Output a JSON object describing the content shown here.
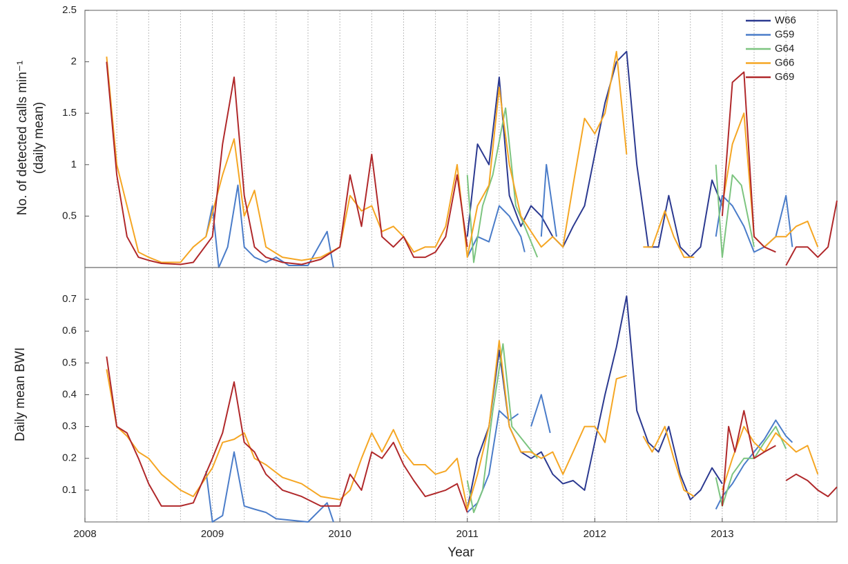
{
  "chart_data": [
    {
      "type": "line",
      "ylabel": [
        "No. of detected calls min⁻¹",
        "(daily mean)"
      ],
      "xlim": [
        2008,
        2013.9
      ],
      "ylim": [
        0,
        2.5
      ],
      "yticks": [
        0.5,
        1,
        1.5,
        2,
        2.5
      ],
      "legend": "upper right",
      "grid_x": [
        2008.25,
        2008.5,
        2008.75,
        2009,
        2009.25,
        2009.5,
        2009.75,
        2010,
        2010.25,
        2010.5,
        2010.75,
        2011,
        2011.25,
        2011.5,
        2011.75,
        2012,
        2012.25,
        2012.5,
        2012.75,
        2013,
        2013.25,
        2013.5,
        2013.75
      ],
      "series": [
        {
          "name": "W66",
          "color": "#2b3990",
          "x": [
            2011.0,
            2011.08,
            2011.17,
            2011.25,
            2011.33,
            2011.42,
            2011.5,
            2011.58,
            2011.67,
            2011.75,
            2011.83,
            2011.92,
            2012.0,
            2012.08,
            2012.17,
            2012.25,
            2012.33,
            2012.42,
            2012.5,
            2012.58,
            2012.67,
            2012.75,
            2012.83,
            2012.92,
            2013.0
          ],
          "values": [
            0.3,
            1.2,
            1.0,
            1.85,
            0.7,
            0.4,
            0.6,
            0.5,
            0.3,
            0.2,
            0.4,
            0.6,
            1.1,
            1.6,
            2.0,
            2.1,
            1.0,
            0.2,
            0.2,
            0.7,
            0.2,
            0.1,
            0.2,
            0.85,
            0.6
          ]
        },
        {
          "name": "G59",
          "color": "#4a7cc9",
          "x": [
            2008.95,
            2009.0,
            2009.05,
            2009.12,
            2009.2,
            2009.25,
            2009.33,
            2009.42,
            2009.5,
            2009.6,
            2009.75,
            2009.9,
            2009.95,
            null,
            2011.0,
            2011.08,
            2011.17,
            2011.25,
            2011.33,
            2011.42,
            2011.45,
            null,
            2011.58,
            2011.62,
            2011.7,
            null,
            2012.95,
            2013.0,
            2013.08,
            2013.17,
            2013.25,
            2013.33,
            2013.42,
            2013.5,
            2013.55
          ],
          "values": [
            0.3,
            0.6,
            0.0,
            0.2,
            0.8,
            0.2,
            0.1,
            0.05,
            0.1,
            0.02,
            0.02,
            0.35,
            0.0,
            null,
            0.1,
            0.3,
            0.25,
            0.6,
            0.5,
            0.3,
            0.15,
            null,
            0.3,
            1.0,
            0.3,
            null,
            0.3,
            0.7,
            0.6,
            0.4,
            0.15,
            0.2,
            0.3,
            0.7,
            0.2
          ]
        },
        {
          "name": "G64",
          "color": "#7cc47f",
          "x": [
            2011.0,
            2011.05,
            2011.12,
            2011.2,
            2011.3,
            2011.38,
            2011.45,
            2011.55,
            null,
            2012.95,
            2013.0,
            2013.08,
            2013.15,
            2013.25
          ],
          "values": [
            0.9,
            0.05,
            0.6,
            0.9,
            1.55,
            0.6,
            0.4,
            0.1,
            null,
            1.0,
            0.1,
            0.9,
            0.8,
            0.2
          ]
        },
        {
          "name": "G66",
          "color": "#f5a623",
          "x": [
            2008.17,
            2008.25,
            2008.33,
            2008.42,
            2008.5,
            2008.6,
            2008.75,
            2008.85,
            2008.95,
            2009.08,
            2009.17,
            2009.25,
            2009.33,
            2009.42,
            2009.55,
            2009.7,
            2009.85,
            2010.0,
            2010.08,
            2010.17,
            2010.25,
            2010.33,
            2010.42,
            2010.5,
            2010.58,
            2010.67,
            2010.75,
            2010.83,
            2010.92,
            2011.0,
            2011.08,
            2011.17,
            2011.25,
            2011.33,
            2011.42,
            2011.5,
            2011.58,
            2011.67,
            2011.75,
            2011.83,
            2011.92,
            2012.0,
            2012.08,
            2012.17,
            2012.25,
            null,
            2012.38,
            2012.45,
            2012.55,
            2012.62,
            2012.7,
            2012.78,
            null,
            2013.0,
            2013.08,
            2013.17,
            2013.25,
            2013.33,
            2013.42,
            2013.5,
            2013.58,
            2013.67,
            2013.75
          ],
          "values": [
            2.05,
            1.0,
            0.6,
            0.15,
            0.1,
            0.05,
            0.05,
            0.2,
            0.3,
            0.9,
            1.25,
            0.5,
            0.75,
            0.2,
            0.1,
            0.07,
            0.1,
            0.2,
            0.7,
            0.55,
            0.6,
            0.35,
            0.4,
            0.3,
            0.15,
            0.2,
            0.2,
            0.4,
            1.0,
            0.1,
            0.6,
            0.8,
            1.75,
            1.0,
            0.5,
            0.35,
            0.2,
            0.3,
            0.2,
            0.8,
            1.45,
            1.3,
            1.5,
            2.1,
            1.1,
            null,
            0.2,
            0.2,
            0.55,
            0.3,
            0.1,
            0.1,
            null,
            0.6,
            1.2,
            1.5,
            0.3,
            0.2,
            0.3,
            0.3,
            0.4,
            0.45,
            0.2
          ]
        },
        {
          "name": "G69",
          "color": "#b0282a",
          "x": [
            2008.17,
            2008.25,
            2008.33,
            2008.42,
            2008.5,
            2008.6,
            2008.75,
            2008.85,
            2009.0,
            2009.08,
            2009.17,
            2009.25,
            2009.33,
            2009.42,
            2009.55,
            2009.7,
            2009.85,
            2010.0,
            2010.08,
            2010.17,
            2010.25,
            2010.33,
            2010.42,
            2010.5,
            2010.58,
            2010.67,
            2010.75,
            2010.83,
            2010.92,
            2011.0,
            null,
            2013.0,
            2013.08,
            2013.17,
            2013.25,
            2013.33,
            2013.42,
            null,
            2013.5,
            2013.58,
            2013.67,
            2013.75,
            2013.83,
            2013.9
          ],
          "values": [
            2.0,
            0.9,
            0.3,
            0.1,
            0.07,
            0.04,
            0.03,
            0.05,
            0.3,
            1.2,
            1.85,
            0.7,
            0.2,
            0.1,
            0.05,
            0.03,
            0.08,
            0.2,
            0.9,
            0.4,
            1.1,
            0.3,
            0.2,
            0.3,
            0.1,
            0.1,
            0.15,
            0.3,
            0.9,
            0.2,
            null,
            0.5,
            1.8,
            1.9,
            0.3,
            0.2,
            0.15,
            null,
            0.02,
            0.2,
            0.2,
            0.1,
            0.2,
            0.65
          ]
        }
      ]
    },
    {
      "type": "line",
      "ylabel": "Daily mean BWI",
      "xlabel": "Year",
      "xlim": [
        2008,
        2013.9
      ],
      "ylim": [
        0,
        0.8
      ],
      "yticks": [
        0.1,
        0.2,
        0.3,
        0.4,
        0.5,
        0.6,
        0.7
      ],
      "xticks": [
        2008,
        2009,
        2010,
        2011,
        2012,
        2013
      ],
      "grid_x": [
        2008.25,
        2008.5,
        2008.75,
        2009,
        2009.25,
        2009.5,
        2009.75,
        2010,
        2010.25,
        2010.5,
        2010.75,
        2011,
        2011.25,
        2011.5,
        2011.75,
        2012,
        2012.25,
        2012.5,
        2012.75,
        2013,
        2013.25,
        2013.5,
        2013.75
      ],
      "series": [
        {
          "name": "W66",
          "color": "#2b3990",
          "x": [
            2011.0,
            2011.08,
            2011.17,
            2011.25,
            2011.33,
            2011.42,
            2011.5,
            2011.58,
            2011.67,
            2011.75,
            2011.83,
            2011.92,
            2012.0,
            2012.08,
            2012.17,
            2012.25,
            2012.33,
            2012.42,
            2012.5,
            2012.58,
            2012.67,
            2012.75,
            2012.83,
            2012.92,
            2013.0
          ],
          "values": [
            0.04,
            0.2,
            0.3,
            0.54,
            0.3,
            0.22,
            0.2,
            0.22,
            0.15,
            0.12,
            0.13,
            0.1,
            0.25,
            0.4,
            0.55,
            0.71,
            0.35,
            0.25,
            0.22,
            0.3,
            0.15,
            0.07,
            0.1,
            0.17,
            0.12
          ]
        },
        {
          "name": "G59",
          "color": "#4a7cc9",
          "x": [
            2008.95,
            2009.0,
            2009.08,
            2009.17,
            2009.25,
            2009.33,
            2009.42,
            2009.5,
            2009.75,
            2009.9,
            2009.95,
            null,
            2011.0,
            2011.08,
            2011.17,
            2011.25,
            2011.33,
            2011.4,
            null,
            2011.5,
            2011.58,
            2011.65,
            null,
            2012.95,
            2013.0,
            2013.08,
            2013.17,
            2013.25,
            2013.33,
            2013.42,
            2013.5,
            2013.55
          ],
          "values": [
            0.16,
            0.0,
            0.02,
            0.22,
            0.05,
            0.04,
            0.03,
            0.01,
            0.0,
            0.06,
            0.0,
            null,
            0.03,
            0.06,
            0.15,
            0.35,
            0.32,
            0.34,
            null,
            0.3,
            0.4,
            0.28,
            null,
            0.04,
            0.08,
            0.12,
            0.18,
            0.22,
            0.26,
            0.32,
            0.27,
            0.25
          ]
        },
        {
          "name": "G64",
          "color": "#7cc47f",
          "x": [
            2011.0,
            2011.05,
            2011.12,
            2011.2,
            2011.28,
            2011.35,
            2011.45,
            2011.55,
            null,
            2012.95,
            2013.0,
            2013.08,
            2013.17,
            2013.25,
            2013.33,
            2013.42,
            2013.5
          ],
          "values": [
            0.13,
            0.03,
            0.1,
            0.35,
            0.56,
            0.3,
            0.25,
            0.2,
            null,
            0.14,
            0.05,
            0.15,
            0.2,
            0.2,
            0.25,
            0.3,
            0.23
          ]
        },
        {
          "name": "G66",
          "color": "#f5a623",
          "x": [
            2008.17,
            2008.25,
            2008.33,
            2008.42,
            2008.5,
            2008.6,
            2008.75,
            2008.85,
            2009.0,
            2009.08,
            2009.17,
            2009.25,
            2009.33,
            2009.42,
            2009.55,
            2009.7,
            2009.85,
            2010.0,
            2010.08,
            2010.17,
            2010.25,
            2010.33,
            2010.42,
            2010.5,
            2010.58,
            2010.67,
            2010.75,
            2010.83,
            2010.92,
            2011.0,
            2011.08,
            2011.17,
            2011.25,
            2011.33,
            2011.42,
            2011.5,
            2011.58,
            2011.67,
            2011.75,
            2011.83,
            2011.92,
            2012.0,
            2012.08,
            2012.17,
            2012.25,
            null,
            2012.38,
            2012.45,
            2012.55,
            2012.62,
            2012.7,
            2012.78,
            null,
            2013.0,
            2013.08,
            2013.17,
            2013.25,
            2013.33,
            2013.42,
            2013.5,
            2013.58,
            2013.67,
            2013.75
          ],
          "values": [
            0.48,
            0.3,
            0.27,
            0.22,
            0.2,
            0.15,
            0.1,
            0.08,
            0.17,
            0.25,
            0.26,
            0.28,
            0.2,
            0.18,
            0.14,
            0.12,
            0.08,
            0.07,
            0.1,
            0.2,
            0.28,
            0.22,
            0.29,
            0.22,
            0.18,
            0.18,
            0.15,
            0.16,
            0.2,
            0.04,
            0.15,
            0.3,
            0.57,
            0.3,
            0.22,
            0.22,
            0.2,
            0.22,
            0.15,
            0.22,
            0.3,
            0.3,
            0.25,
            0.45,
            0.46,
            null,
            0.27,
            0.22,
            0.3,
            0.2,
            0.1,
            0.08,
            null,
            0.1,
            0.2,
            0.3,
            0.25,
            0.22,
            0.28,
            0.25,
            0.22,
            0.24,
            0.15
          ]
        },
        {
          "name": "G69",
          "color": "#b0282a",
          "x": [
            2008.17,
            2008.25,
            2008.33,
            2008.42,
            2008.5,
            2008.6,
            2008.75,
            2008.85,
            2009.0,
            2009.08,
            2009.17,
            2009.25,
            2009.33,
            2009.42,
            2009.55,
            2009.7,
            2009.85,
            2010.0,
            2010.08,
            2010.17,
            2010.25,
            2010.33,
            2010.42,
            2010.5,
            2010.58,
            2010.67,
            2010.75,
            2010.83,
            2010.92,
            2011.0,
            null,
            2013.0,
            2013.05,
            2013.1,
            2013.17,
            2013.25,
            2013.33,
            2013.42,
            null,
            2013.5,
            2013.58,
            2013.67,
            2013.75,
            2013.83,
            2013.9
          ],
          "values": [
            0.52,
            0.3,
            0.28,
            0.2,
            0.12,
            0.05,
            0.05,
            0.06,
            0.2,
            0.28,
            0.44,
            0.25,
            0.22,
            0.15,
            0.1,
            0.08,
            0.05,
            0.05,
            0.15,
            0.1,
            0.22,
            0.2,
            0.25,
            0.18,
            0.13,
            0.08,
            0.09,
            0.1,
            0.12,
            0.03,
            null,
            0.05,
            0.3,
            0.22,
            0.35,
            0.2,
            0.22,
            0.24,
            null,
            0.13,
            0.15,
            0.13,
            0.1,
            0.08,
            0.11
          ]
        }
      ]
    }
  ]
}
